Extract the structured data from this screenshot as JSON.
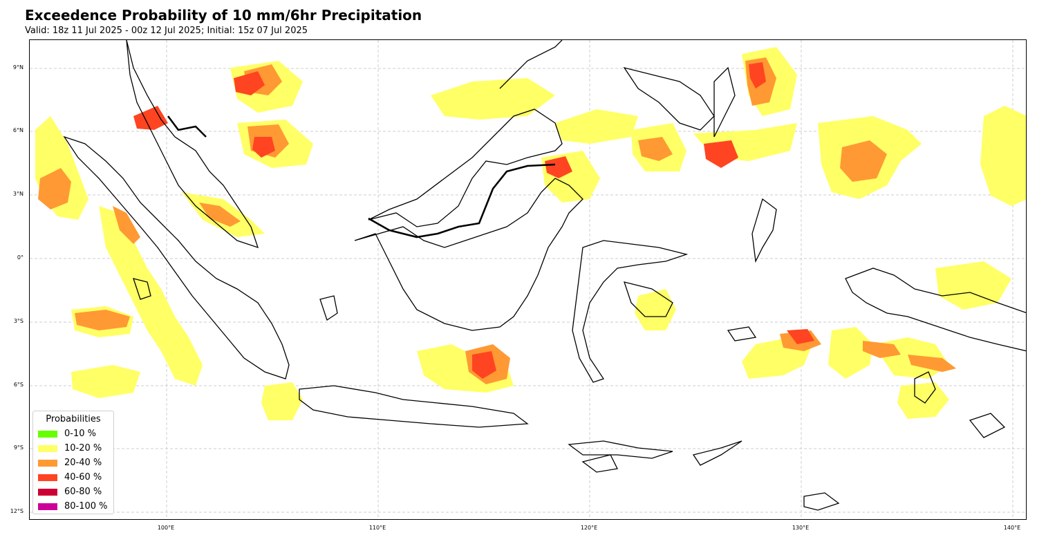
{
  "header": {
    "title": "Exceedence Probability of 10 mm/6hr Precipitation",
    "subtitle": "Valid: 18z 11 Jul 2025 - 00z 12 Jul 2025; Initial: 15z 07 Jul 2025"
  },
  "axes": {
    "lat_labels": [
      "9°N",
      "6°N",
      "3°N",
      "0°",
      "3°S",
      "6°S",
      "9°S",
      "12°S"
    ],
    "lon_labels": [
      "100°E",
      "110°E",
      "120°E",
      "130°E",
      "140°E"
    ],
    "grid": true
  },
  "legend": {
    "title": "Probabilities",
    "placement": "lower-left",
    "items": [
      {
        "label": "0-10 %",
        "color": "#66ff00"
      },
      {
        "label": "10-20 %",
        "color": "#ffff66"
      },
      {
        "label": "20-40 %",
        "color": "#ff9933"
      },
      {
        "label": "40-60 %",
        "color": "#ff4422"
      },
      {
        "label": "60-80 %",
        "color": "#cc0033"
      },
      {
        "label": "80-100 %",
        "color": "#cc0099"
      }
    ]
  },
  "map": {
    "region": "Indonesia / Maritime Continent",
    "lon_range": [
      93.5,
      140.7
    ],
    "lat_range": [
      -12.4,
      10.3
    ],
    "projection": "PlateCarree",
    "gridline_style": "dashed",
    "gridline_color": "#cccccc",
    "coastline_color": "#000000",
    "fill_colors": {
      "p10_20": "#ffff66",
      "p20_40": "#ff9933",
      "p40_60": "#ff4422"
    }
  }
}
